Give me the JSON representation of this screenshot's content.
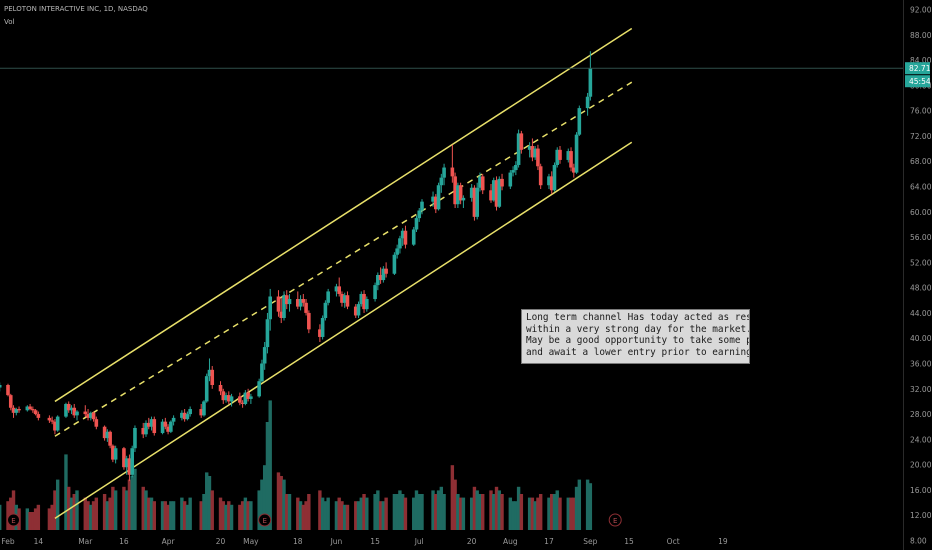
{
  "header": {
    "symbol": "PELOTON INTERACTIVE INC, 1D, NASDAQ",
    "indicator": "Vol"
  },
  "annotation": {
    "lines": [
      "Long term channel Has today acted as resistance",
      "within a very strong day for the market.",
      "May be a good opportunity to take some profits",
      "and await a lower entry prior to earnings."
    ]
  },
  "colors": {
    "up": "#26a69a",
    "down": "#ef5350",
    "vol_up": "#1f6b62",
    "vol_down": "#8e2f34",
    "channel": "#e8e06a",
    "axis_text": "#9a9a9a",
    "price_badge": "#26a69a"
  },
  "chart_data": {
    "type": "candlestick",
    "yaxis": {
      "ticks": [
        "92.00",
        "88.00",
        "84.00",
        "80.00",
        "76.00",
        "72.00",
        "68.00",
        "64.00",
        "60.00",
        "56.00",
        "52.00",
        "48.00",
        "44.00",
        "40.00",
        "36.00",
        "32.00",
        "28.00",
        "24.00",
        "20.00",
        "16.00",
        "12.00",
        "8.00"
      ],
      "range": [
        6.5,
        93.5
      ]
    },
    "xaxis": {
      "ticks": [
        {
          "label": "Feb",
          "date": "2020-02-03"
        },
        {
          "label": "14",
          "date": "2020-02-14"
        },
        {
          "label": "Mar",
          "date": "2020-03-02"
        },
        {
          "label": "16",
          "date": "2020-03-16"
        },
        {
          "label": "Apr",
          "date": "2020-04-01"
        },
        {
          "label": "20",
          "date": "2020-04-20"
        },
        {
          "label": "May",
          "date": "2020-05-01"
        },
        {
          "label": "18",
          "date": "2020-05-18"
        },
        {
          "label": "Jun",
          "date": "2020-06-01"
        },
        {
          "label": "15",
          "date": "2020-06-15"
        },
        {
          "label": "Jul",
          "date": "2020-07-01"
        },
        {
          "label": "20",
          "date": "2020-07-20"
        },
        {
          "label": "Aug",
          "date": "2020-08-03"
        },
        {
          "label": "17",
          "date": "2020-08-17"
        },
        {
          "label": "Sep",
          "date": "2020-09-01"
        },
        {
          "label": "15",
          "date": "2020-09-15"
        },
        {
          "label": "Oct",
          "date": "2020-10-01"
        },
        {
          "label": "19",
          "date": "2020-10-19"
        }
      ]
    },
    "current_price": "82.71",
    "countdown": "45:54",
    "events": [
      {
        "label": "E",
        "date": "2020-02-05"
      },
      {
        "label": "E",
        "date": "2020-05-06"
      },
      {
        "label": "E",
        "date": "2020-09-10"
      }
    ],
    "channel": [
      {
        "style": "solid",
        "from": {
          "date": "2020-02-20",
          "price": 30.0
        },
        "to": {
          "date": "2020-09-16",
          "price": 89.0
        }
      },
      {
        "style": "dashed",
        "from": {
          "date": "2020-02-20",
          "price": 24.5
        },
        "to": {
          "date": "2020-09-16",
          "price": 80.5
        }
      },
      {
        "style": "solid",
        "from": {
          "date": "2020-02-20",
          "price": 11.5
        },
        "to": {
          "date": "2020-09-16",
          "price": 71.0
        }
      }
    ],
    "candles": [
      [
        "2020-01-27",
        33.2,
        34.0,
        32.6,
        33.8,
        9
      ],
      [
        "2020-01-28",
        33.8,
        34.6,
        33.0,
        34.2,
        8
      ],
      [
        "2020-01-29",
        34.2,
        34.8,
        32.8,
        33.0,
        9
      ],
      [
        "2020-01-30",
        33.0,
        33.6,
        31.8,
        32.2,
        8
      ],
      [
        "2020-01-31",
        32.2,
        33.0,
        31.6,
        32.6,
        7
      ],
      [
        "2020-02-03",
        32.6,
        32.8,
        30.8,
        31.0,
        8
      ],
      [
        "2020-02-04",
        31.0,
        31.2,
        28.6,
        29.0,
        9
      ],
      [
        "2020-02-05",
        29.0,
        29.4,
        27.4,
        28.2,
        11
      ],
      [
        "2020-02-06",
        28.2,
        29.0,
        27.8,
        28.8,
        7
      ],
      [
        "2020-02-07",
        28.8,
        29.2,
        28.2,
        28.6,
        6
      ],
      [
        "2020-02-10",
        28.6,
        29.4,
        28.4,
        29.2,
        6
      ],
      [
        "2020-02-11",
        29.2,
        29.6,
        28.6,
        28.8,
        5
      ],
      [
        "2020-02-12",
        28.8,
        29.2,
        28.2,
        28.6,
        5
      ],
      [
        "2020-02-13",
        28.6,
        28.8,
        27.8,
        28.0,
        6
      ],
      [
        "2020-02-14",
        28.0,
        28.4,
        27.0,
        27.4,
        7
      ],
      [
        "2020-02-18",
        27.4,
        27.8,
        26.6,
        27.0,
        6
      ],
      [
        "2020-02-19",
        27.0,
        27.6,
        26.4,
        26.8,
        7
      ],
      [
        "2020-02-20",
        26.8,
        27.2,
        24.8,
        25.4,
        11
      ],
      [
        "2020-02-21",
        25.4,
        27.8,
        25.2,
        27.6,
        14
      ],
      [
        "2020-02-24",
        27.6,
        29.8,
        27.4,
        29.6,
        21
      ],
      [
        "2020-02-25",
        29.6,
        30.0,
        28.2,
        28.6,
        12
      ],
      [
        "2020-02-26",
        28.6,
        29.4,
        28.0,
        29.0,
        9
      ],
      [
        "2020-02-27",
        29.0,
        29.6,
        27.4,
        27.8,
        10
      ],
      [
        "2020-02-28",
        27.8,
        28.6,
        27.0,
        28.4,
        11
      ],
      [
        "2020-03-02",
        28.4,
        29.4,
        27.6,
        28.0,
        9
      ],
      [
        "2020-03-03",
        28.0,
        28.8,
        27.0,
        27.4,
        8
      ],
      [
        "2020-03-04",
        27.4,
        28.4,
        27.0,
        28.2,
        7
      ],
      [
        "2020-03-05",
        28.2,
        28.4,
        26.8,
        27.2,
        8
      ],
      [
        "2020-03-06",
        27.2,
        27.6,
        25.6,
        26.0,
        9
      ],
      [
        "2020-03-09",
        26.0,
        26.2,
        23.8,
        24.2,
        10
      ],
      [
        "2020-03-10",
        24.2,
        25.6,
        23.6,
        25.2,
        8
      ],
      [
        "2020-03-11",
        25.2,
        25.4,
        22.6,
        23.0,
        9
      ],
      [
        "2020-03-12",
        23.0,
        23.2,
        20.4,
        20.8,
        12
      ],
      [
        "2020-03-13",
        20.8,
        23.0,
        20.2,
        22.6,
        11
      ],
      [
        "2020-03-16",
        22.6,
        22.8,
        19.2,
        19.6,
        12
      ],
      [
        "2020-03-17",
        19.6,
        21.4,
        18.4,
        21.0,
        11
      ],
      [
        "2020-03-18",
        21.0,
        21.6,
        17.4,
        18.4,
        14
      ],
      [
        "2020-03-19",
        18.4,
        23.0,
        18.0,
        22.6,
        15
      ],
      [
        "2020-03-20",
        22.6,
        26.2,
        22.0,
        25.8,
        17
      ],
      [
        "2020-03-23",
        25.8,
        26.6,
        24.2,
        24.8,
        12
      ],
      [
        "2020-03-24",
        24.8,
        27.0,
        24.4,
        26.6,
        11
      ],
      [
        "2020-03-25",
        26.6,
        27.4,
        25.6,
        26.0,
        9
      ],
      [
        "2020-03-26",
        26.0,
        27.6,
        25.4,
        27.2,
        9
      ],
      [
        "2020-03-27",
        27.2,
        27.6,
        24.6,
        25.0,
        8
      ],
      [
        "2020-03-30",
        25.0,
        27.2,
        24.8,
        26.8,
        8
      ],
      [
        "2020-03-31",
        26.8,
        27.4,
        25.6,
        26.0,
        8
      ],
      [
        "2020-04-01",
        26.0,
        26.4,
        24.8,
        25.2,
        7
      ],
      [
        "2020-04-02",
        25.2,
        27.0,
        25.0,
        26.8,
        8
      ],
      [
        "2020-04-03",
        26.8,
        27.8,
        26.2,
        27.4,
        8
      ],
      [
        "2020-04-06",
        27.4,
        28.6,
        27.0,
        28.2,
        9
      ],
      [
        "2020-04-07",
        28.2,
        28.8,
        26.8,
        27.2,
        8
      ],
      [
        "2020-04-08",
        27.2,
        28.4,
        27.0,
        28.0,
        7
      ],
      [
        "2020-04-09",
        28.0,
        29.2,
        27.6,
        28.8,
        9
      ],
      [
        "2020-04-13",
        28.8,
        29.6,
        27.4,
        27.8,
        8
      ],
      [
        "2020-04-14",
        27.8,
        30.2,
        27.6,
        30.0,
        10
      ],
      [
        "2020-04-15",
        30.0,
        34.4,
        29.8,
        34.0,
        16
      ],
      [
        "2020-04-16",
        34.0,
        36.8,
        33.2,
        35.0,
        15
      ],
      [
        "2020-04-17",
        35.0,
        35.6,
        32.0,
        32.6,
        11
      ],
      [
        "2020-04-20",
        32.6,
        33.2,
        31.0,
        31.6,
        9
      ],
      [
        "2020-04-21",
        31.6,
        32.0,
        29.6,
        30.2,
        8
      ],
      [
        "2020-04-22",
        30.2,
        31.4,
        29.8,
        31.0,
        7
      ],
      [
        "2020-04-23",
        31.0,
        31.6,
        29.6,
        30.0,
        8
      ],
      [
        "2020-04-24",
        30.0,
        31.2,
        29.2,
        30.8,
        7
      ],
      [
        "2020-04-27",
        30.8,
        31.4,
        29.4,
        29.8,
        7
      ],
      [
        "2020-04-28",
        29.8,
        30.2,
        29.0,
        29.6,
        8
      ],
      [
        "2020-04-29",
        29.6,
        31.8,
        29.4,
        31.4,
        9
      ],
      [
        "2020-04-30",
        31.4,
        32.0,
        30.0,
        30.4,
        8
      ],
      [
        "2020-05-01",
        30.4,
        31.2,
        29.6,
        30.8,
        8
      ],
      [
        "2020-05-04",
        30.8,
        33.6,
        30.6,
        33.2,
        11
      ],
      [
        "2020-05-05",
        33.2,
        36.6,
        33.0,
        36.0,
        14
      ],
      [
        "2020-05-06",
        36.0,
        39.4,
        35.0,
        38.6,
        18
      ],
      [
        "2020-05-07",
        38.6,
        44.0,
        37.6,
        43.0,
        30
      ],
      [
        "2020-05-08",
        43.0,
        47.8,
        41.2,
        46.6,
        36
      ],
      [
        "2020-05-11",
        46.6,
        47.6,
        43.4,
        44.2,
        16
      ],
      [
        "2020-05-12",
        44.2,
        46.4,
        42.4,
        43.2,
        15
      ],
      [
        "2020-05-13",
        43.2,
        47.4,
        42.8,
        46.8,
        14
      ],
      [
        "2020-05-14",
        46.8,
        47.6,
        44.6,
        45.4,
        10
      ],
      [
        "2020-05-15",
        45.4,
        47.0,
        44.2,
        46.2,
        10
      ],
      [
        "2020-05-18",
        46.2,
        47.4,
        44.6,
        45.0,
        9
      ],
      [
        "2020-05-19",
        45.0,
        46.8,
        44.4,
        46.2,
        8
      ],
      [
        "2020-05-20",
        46.2,
        47.0,
        45.0,
        45.6,
        7
      ],
      [
        "2020-05-21",
        45.6,
        46.2,
        43.6,
        44.0,
        8
      ],
      [
        "2020-05-22",
        44.0,
        44.4,
        40.8,
        41.4,
        10
      ],
      [
        "2020-05-26",
        41.4,
        42.2,
        39.4,
        40.2,
        11
      ],
      [
        "2020-05-27",
        40.2,
        43.6,
        39.8,
        43.2,
        9
      ],
      [
        "2020-05-28",
        43.2,
        46.0,
        42.8,
        45.6,
        8
      ],
      [
        "2020-05-29",
        45.6,
        47.8,
        45.2,
        47.4,
        9
      ],
      [
        "2020-06-01",
        47.4,
        48.6,
        46.6,
        48.2,
        8
      ],
      [
        "2020-06-02",
        48.2,
        49.6,
        46.6,
        47.0,
        9
      ],
      [
        "2020-06-03",
        47.0,
        47.4,
        45.0,
        45.6,
        8
      ],
      [
        "2020-06-04",
        45.6,
        47.2,
        44.8,
        46.8,
        7
      ],
      [
        "2020-06-05",
        46.8,
        47.4,
        44.6,
        45.0,
        7
      ],
      [
        "2020-06-08",
        45.0,
        45.4,
        43.2,
        43.6,
        8
      ],
      [
        "2020-06-09",
        43.6,
        45.8,
        43.2,
        45.4,
        8
      ],
      [
        "2020-06-10",
        45.4,
        47.4,
        45.0,
        47.0,
        9
      ],
      [
        "2020-06-11",
        47.0,
        47.6,
        44.0,
        44.6,
        10
      ],
      [
        "2020-06-12",
        44.6,
        46.6,
        44.2,
        46.2,
        9
      ],
      [
        "2020-06-15",
        46.2,
        48.8,
        45.8,
        48.4,
        10
      ],
      [
        "2020-06-16",
        48.4,
        50.4,
        47.6,
        50.0,
        11
      ],
      [
        "2020-06-17",
        50.0,
        51.2,
        48.6,
        49.2,
        8
      ],
      [
        "2020-06-18",
        49.2,
        51.4,
        48.8,
        51.0,
        8
      ],
      [
        "2020-06-19",
        51.0,
        52.0,
        49.6,
        50.2,
        9
      ],
      [
        "2020-06-22",
        50.2,
        53.6,
        50.0,
        53.2,
        10
      ],
      [
        "2020-06-23",
        53.2,
        54.8,
        52.6,
        54.2,
        10
      ],
      [
        "2020-06-24",
        54.2,
        56.2,
        53.4,
        55.8,
        11
      ],
      [
        "2020-06-25",
        55.8,
        57.4,
        54.6,
        57.0,
        10
      ],
      [
        "2020-06-26",
        57.0,
        57.8,
        54.2,
        54.8,
        9
      ],
      [
        "2020-06-29",
        54.8,
        57.6,
        54.6,
        57.2,
        9
      ],
      [
        "2020-06-30",
        57.2,
        59.4,
        56.8,
        59.0,
        11
      ],
      [
        "2020-07-01",
        59.0,
        60.6,
        58.4,
        60.2,
        10
      ],
      [
        "2020-07-02",
        60.2,
        62.0,
        59.6,
        61.6,
        10
      ],
      [
        "2020-07-06",
        61.6,
        63.2,
        60.8,
        62.4,
        11
      ],
      [
        "2020-07-07",
        62.4,
        62.8,
        59.8,
        60.4,
        10
      ],
      [
        "2020-07-08",
        60.4,
        64.6,
        60.2,
        64.2,
        11
      ],
      [
        "2020-07-09",
        64.2,
        66.0,
        63.0,
        65.4,
        12
      ],
      [
        "2020-07-10",
        65.4,
        67.6,
        64.2,
        67.0,
        10
      ],
      [
        "2020-07-13",
        67.0,
        70.6,
        64.6,
        65.6,
        18
      ],
      [
        "2020-07-14",
        65.6,
        66.2,
        60.6,
        61.2,
        14
      ],
      [
        "2020-07-15",
        61.2,
        64.6,
        60.6,
        64.2,
        10
      ],
      [
        "2020-07-16",
        64.2,
        64.6,
        61.2,
        61.8,
        9
      ],
      [
        "2020-07-17",
        61.8,
        62.6,
        60.6,
        62.2,
        9
      ],
      [
        "2020-07-20",
        62.2,
        64.4,
        61.6,
        63.8,
        9
      ],
      [
        "2020-07-21",
        63.8,
        64.2,
        58.6,
        59.2,
        12
      ],
      [
        "2020-07-22",
        59.2,
        64.6,
        58.8,
        63.8,
        11
      ],
      [
        "2020-07-23",
        63.8,
        66.2,
        63.2,
        65.6,
        10
      ],
      [
        "2020-07-24",
        65.6,
        66.0,
        62.8,
        63.4,
        10
      ],
      [
        "2020-07-27",
        63.4,
        64.4,
        61.4,
        61.8,
        11
      ],
      [
        "2020-07-28",
        61.8,
        65.4,
        61.6,
        65.0,
        10
      ],
      [
        "2020-07-29",
        65.0,
        65.6,
        60.2,
        60.8,
        12
      ],
      [
        "2020-07-30",
        60.8,
        65.6,
        60.6,
        65.2,
        11
      ],
      [
        "2020-07-31",
        65.2,
        66.0,
        63.4,
        64.0,
        10
      ],
      [
        "2020-08-03",
        64.0,
        66.6,
        63.6,
        66.2,
        9
      ],
      [
        "2020-08-04",
        66.2,
        67.2,
        65.6,
        66.6,
        8
      ],
      [
        "2020-08-05",
        66.6,
        68.0,
        65.8,
        67.4,
        8
      ],
      [
        "2020-08-06",
        67.4,
        73.0,
        67.0,
        72.4,
        12
      ],
      [
        "2020-08-07",
        72.4,
        72.8,
        69.2,
        69.8,
        10
      ],
      [
        "2020-08-10",
        69.8,
        71.0,
        68.6,
        70.4,
        9
      ],
      [
        "2020-08-11",
        70.4,
        71.6,
        68.0,
        68.6,
        9
      ],
      [
        "2020-08-12",
        68.6,
        70.4,
        68.2,
        70.0,
        8
      ],
      [
        "2020-08-13",
        70.0,
        70.6,
        66.6,
        67.2,
        9
      ],
      [
        "2020-08-14",
        67.2,
        67.6,
        63.6,
        64.2,
        10
      ],
      [
        "2020-08-17",
        64.2,
        66.0,
        63.6,
        65.6,
        9
      ],
      [
        "2020-08-18",
        65.6,
        66.4,
        62.8,
        63.4,
        10
      ],
      [
        "2020-08-19",
        63.4,
        67.8,
        63.2,
        67.4,
        10
      ],
      [
        "2020-08-20",
        67.4,
        70.2,
        67.0,
        69.8,
        11
      ],
      [
        "2020-08-21",
        69.8,
        70.4,
        67.6,
        68.2,
        9
      ],
      [
        "2020-08-24",
        68.2,
        70.0,
        67.8,
        69.6,
        9
      ],
      [
        "2020-08-25",
        69.6,
        70.2,
        66.4,
        67.0,
        9
      ],
      [
        "2020-08-26",
        67.0,
        67.6,
        65.4,
        66.2,
        9
      ],
      [
        "2020-08-27",
        66.2,
        72.6,
        66.0,
        72.2,
        12
      ],
      [
        "2020-08-28",
        72.2,
        76.8,
        72.0,
        76.4,
        14
      ],
      [
        "2020-08-31",
        76.4,
        78.8,
        75.2,
        78.2,
        14
      ],
      [
        "2020-09-01",
        78.2,
        85.4,
        77.6,
        82.7,
        13
      ]
    ]
  }
}
